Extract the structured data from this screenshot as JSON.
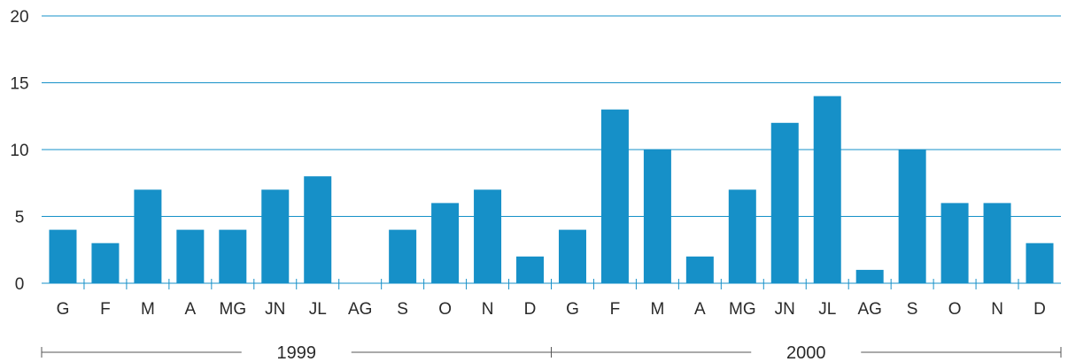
{
  "chart_data": {
    "type": "bar",
    "categories": [
      "G",
      "F",
      "M",
      "A",
      "MG",
      "JN",
      "JL",
      "AG",
      "S",
      "O",
      "N",
      "D",
      "G",
      "F",
      "M",
      "A",
      "MG",
      "JN",
      "JL",
      "AG",
      "S",
      "O",
      "N",
      "D"
    ],
    "values": [
      4,
      3,
      7,
      4,
      4,
      7,
      8,
      0,
      4,
      6,
      7,
      2,
      4,
      13,
      10,
      2,
      7,
      12,
      14,
      1,
      10,
      6,
      6,
      3
    ],
    "groups": [
      {
        "label": "1999",
        "start": 0,
        "end": 12
      },
      {
        "label": "2000",
        "start": 12,
        "end": 24
      }
    ],
    "yticks": [
      0,
      5,
      10,
      15,
      20
    ],
    "ylim": [
      0,
      20
    ],
    "grid": true,
    "title": "",
    "xlabel": "",
    "ylabel": "",
    "bar_color": "#1690c8",
    "grid_color": "#1690c8",
    "axis_color": "#1690c8"
  }
}
